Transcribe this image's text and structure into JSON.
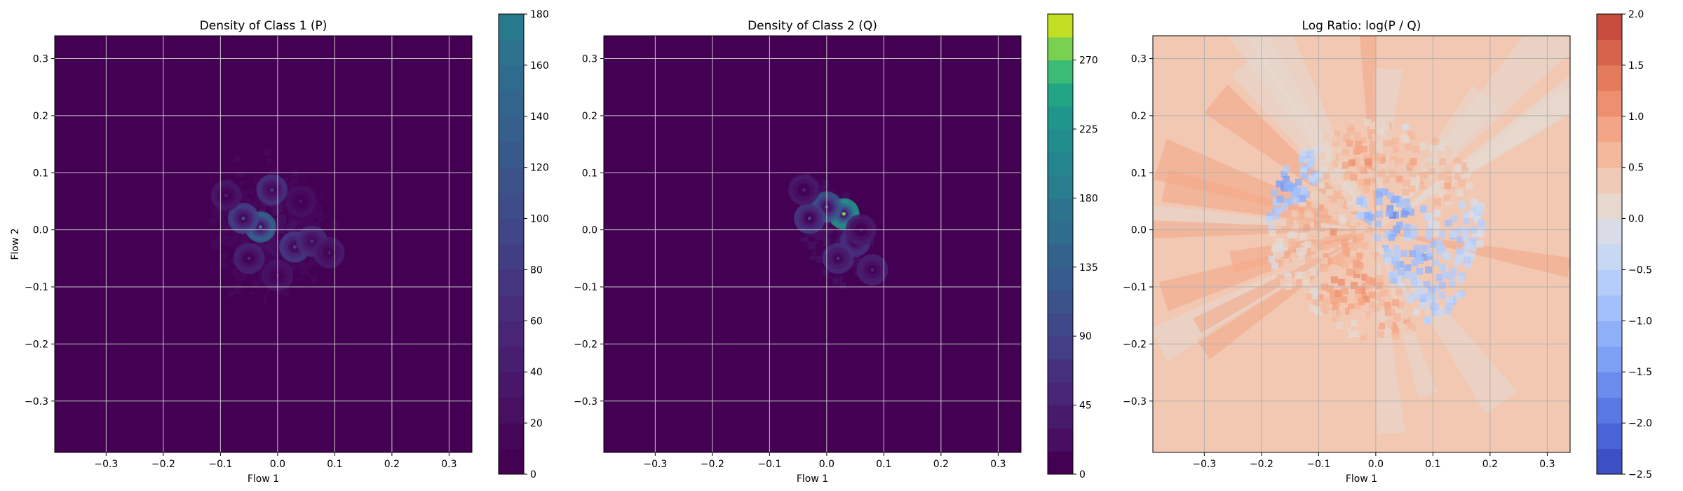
{
  "chart_data": [
    {
      "type": "heatmap",
      "title": "Density of Class 1 (P)",
      "xlabel": "Flow 1",
      "ylabel": "Flow 2",
      "xlim": [
        -0.39,
        0.34
      ],
      "ylim": [
        -0.39,
        0.34
      ],
      "xticks": [
        -0.3,
        -0.2,
        -0.1,
        0.0,
        0.1,
        0.2,
        0.3
      ],
      "yticks": [
        -0.3,
        -0.2,
        -0.1,
        0.0,
        0.1,
        0.2,
        0.3
      ],
      "xtick_labels": [
        "−0.3",
        "−0.2",
        "−0.1",
        "0.0",
        "0.1",
        "0.2",
        "0.3"
      ],
      "ytick_labels": [
        "−0.3",
        "−0.2",
        "−0.1",
        "0.0",
        "0.1",
        "0.2",
        "0.3"
      ],
      "grid": true,
      "colormap": "viridis",
      "background_color": "#440154",
      "colorbar": {
        "range": [
          0,
          180
        ],
        "ticks": [
          0,
          20,
          40,
          60,
          80,
          100,
          120,
          140,
          160,
          180
        ],
        "tick_labels": [
          "0",
          "20",
          "40",
          "60",
          "80",
          "100",
          "120",
          "140",
          "160",
          "180"
        ],
        "levels": 18,
        "colors": [
          "#440154",
          "#46075a",
          "#471063",
          "#481769",
          "#481f70",
          "#482576",
          "#472d7b",
          "#453581",
          "#433d84",
          "#404588",
          "#3e4c8a",
          "#3b528b",
          "#38598c",
          "#355f8d",
          "#32658e",
          "#2f6b8e",
          "#2c728e",
          "#29798e"
        ]
      },
      "peaks": [
        {
          "x": -0.03,
          "y": 0.005,
          "value": 175
        },
        {
          "x": -0.06,
          "y": 0.02,
          "value": 110
        },
        {
          "x": 0.03,
          "y": -0.03,
          "value": 95
        },
        {
          "x": -0.01,
          "y": 0.07,
          "value": 80
        },
        {
          "x": 0.06,
          "y": -0.02,
          "value": 70
        },
        {
          "x": -0.05,
          "y": -0.05,
          "value": 60
        },
        {
          "x": 0.09,
          "y": -0.04,
          "value": 45
        },
        {
          "x": -0.09,
          "y": 0.06,
          "value": 40
        },
        {
          "x": 0.0,
          "y": -0.08,
          "value": 35
        },
        {
          "x": 0.04,
          "y": 0.05,
          "value": 30
        }
      ],
      "support": {
        "center": [
          -0.01,
          0.0
        ],
        "radius": [
          0.12,
          0.13
        ]
      }
    },
    {
      "type": "heatmap",
      "title": "Density of Class 2 (Q)",
      "xlabel": "Flow 1",
      "ylabel": "",
      "xlim": [
        -0.39,
        0.34
      ],
      "ylim": [
        -0.39,
        0.34
      ],
      "xticks": [
        -0.3,
        -0.2,
        -0.1,
        0.0,
        0.1,
        0.2,
        0.3
      ],
      "yticks": [
        -0.3,
        -0.2,
        -0.1,
        0.0,
        0.1,
        0.2,
        0.3
      ],
      "xtick_labels": [
        "−0.3",
        "−0.2",
        "−0.1",
        "0.0",
        "0.1",
        "0.2",
        "0.3"
      ],
      "ytick_labels": [
        "−0.3",
        "−0.2",
        "−0.1",
        "0.0",
        "0.1",
        "0.2",
        "0.3"
      ],
      "grid": true,
      "colormap": "viridis",
      "background_color": "#440154",
      "colorbar": {
        "range": [
          0,
          300
        ],
        "ticks": [
          0,
          45,
          90,
          135,
          180,
          225,
          270
        ],
        "tick_labels": [
          "0",
          "45",
          "90",
          "135",
          "180",
          "225",
          "270"
        ],
        "levels": 20,
        "colors": [
          "#440154",
          "#470e61",
          "#481a6c",
          "#482576",
          "#46307e",
          "#433e85",
          "#3f4889",
          "#3b528b",
          "#375b8d",
          "#33638d",
          "#2f6c8e",
          "#2c738e",
          "#287d8e",
          "#25858e",
          "#228d8d",
          "#1f958b",
          "#21a585",
          "#3bbb75",
          "#7ad151",
          "#c2df23"
        ]
      },
      "peaks": [
        {
          "x": 0.03,
          "y": 0.028,
          "value": 280
        },
        {
          "x": 0.0,
          "y": 0.04,
          "value": 140
        },
        {
          "x": -0.03,
          "y": 0.02,
          "value": 90
        },
        {
          "x": 0.05,
          "y": -0.02,
          "value": 80
        },
        {
          "x": 0.02,
          "y": -0.05,
          "value": 70
        },
        {
          "x": 0.08,
          "y": -0.07,
          "value": 55
        },
        {
          "x": -0.04,
          "y": 0.07,
          "value": 45
        },
        {
          "x": 0.06,
          "y": 0.0,
          "value": 40
        }
      ],
      "support": {
        "center": [
          0.01,
          0.0
        ],
        "radius": [
          0.1,
          0.12
        ]
      }
    },
    {
      "type": "heatmap",
      "title": "Log Ratio: log(P / Q)",
      "xlabel": "Flow 1",
      "ylabel": "",
      "xlim": [
        -0.39,
        0.34
      ],
      "ylim": [
        -0.39,
        0.34
      ],
      "xticks": [
        -0.3,
        -0.2,
        -0.1,
        0.0,
        0.1,
        0.2,
        0.3
      ],
      "yticks": [
        -0.3,
        -0.2,
        -0.1,
        0.0,
        0.1,
        0.2,
        0.3
      ],
      "xtick_labels": [
        "−0.3",
        "−0.2",
        "−0.1",
        "0.0",
        "0.1",
        "0.2",
        "0.3"
      ],
      "ytick_labels": [
        "−0.3",
        "−0.2",
        "−0.1",
        "0.0",
        "0.1",
        "0.2",
        "0.3"
      ],
      "grid": true,
      "colormap": "coolwarm",
      "background_color": "#f2c8b3",
      "colorbar": {
        "range": [
          -2.5,
          2.0
        ],
        "ticks": [
          -2.5,
          -2.0,
          -1.5,
          -1.0,
          -0.5,
          0.0,
          0.5,
          1.0,
          1.5,
          2.0
        ],
        "tick_labels": [
          "−2.5",
          "−2.0",
          "−1.5",
          "−1.0",
          "−0.5",
          "0.0",
          "0.5",
          "1.0",
          "1.5",
          "2.0"
        ],
        "levels": 18,
        "colors": [
          "#3d4fc4",
          "#4b64d5",
          "#5a78e2",
          "#6b8cec",
          "#7d9ff4",
          "#8fb0f9",
          "#a2c0fc",
          "#b5cdfa",
          "#c8d7f3",
          "#d9dce6",
          "#e6d8cf",
          "#efcbb6",
          "#f4b99d",
          "#f4a585",
          "#ee906f",
          "#e47b5c",
          "#d7644a",
          "#c84c3b"
        ]
      },
      "regions": [
        {
          "x": -0.16,
          "y": 0.08,
          "value": -1.2
        },
        {
          "x": 0.03,
          "y": 0.03,
          "value": -1.4
        },
        {
          "x": 0.08,
          "y": -0.05,
          "value": -1.1
        },
        {
          "x": 0.1,
          "y": -0.1,
          "value": -0.8
        },
        {
          "x": 0.14,
          "y": 0.0,
          "value": -0.6
        },
        {
          "x": -0.06,
          "y": -0.03,
          "value": 1.0
        },
        {
          "x": -0.02,
          "y": 0.12,
          "value": 0.9
        },
        {
          "x": 0.06,
          "y": 0.1,
          "value": 0.8
        },
        {
          "x": -0.04,
          "y": -0.1,
          "value": 1.1
        },
        {
          "x": 0.02,
          "y": -0.16,
          "value": 0.8
        },
        {
          "x": -0.1,
          "y": 0.02,
          "value": 0.7
        },
        {
          "x": 0.12,
          "y": 0.08,
          "value": 0.6
        }
      ]
    }
  ]
}
